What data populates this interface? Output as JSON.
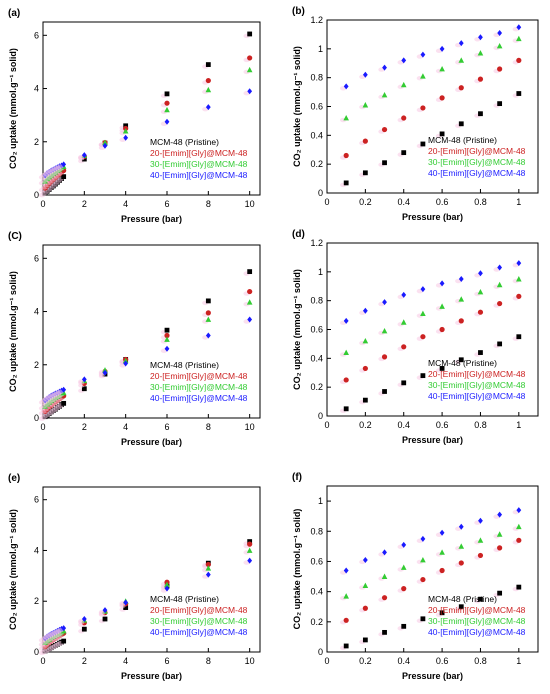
{
  "colors": {
    "pristine": "#000000",
    "il20": "#cc2222",
    "il30": "#33cc33",
    "il40": "#1a1aff",
    "shadow": "#f7c8e4"
  },
  "legend": [
    "MCM-48 (Pristine)",
    "20-[Emim][Gly]@MCM-48",
    "30-[Emim][Gly]@MCM-48",
    "40-[Emim][Gly]@MCM-48"
  ],
  "chart_data": [
    {
      "type": "scatter",
      "label": "(a)",
      "xlabel": "Pressure (bar)",
      "ylabel": "CO₂ uptake (mmol.g⁻¹ solid)",
      "xlim": [
        0,
        10.5
      ],
      "ylim": [
        0,
        6.5
      ],
      "xticks": [
        0,
        2,
        4,
        6,
        8,
        10
      ],
      "yticks": [
        0,
        2,
        4,
        6
      ],
      "legend_position": "lower-right",
      "x": [
        0.1,
        0.2,
        0.3,
        0.4,
        0.5,
        0.6,
        0.7,
        0.8,
        0.9,
        1.0,
        2,
        3,
        4,
        6,
        8,
        10
      ],
      "series": [
        {
          "name": "MCM-48 (Pristine)",
          "values": [
            0.07,
            0.14,
            0.21,
            0.28,
            0.34,
            0.41,
            0.48,
            0.55,
            0.62,
            0.69,
            1.35,
            1.95,
            2.6,
            3.8,
            4.9,
            6.05
          ]
        },
        {
          "name": "20-[Emim][Gly]@MCM-48",
          "values": [
            0.26,
            0.36,
            0.44,
            0.52,
            0.59,
            0.66,
            0.73,
            0.79,
            0.86,
            0.92,
            1.45,
            1.97,
            2.5,
            3.45,
            4.3,
            5.15
          ]
        },
        {
          "name": "30-[Emim][Gly]@MCM-48",
          "values": [
            0.52,
            0.61,
            0.68,
            0.75,
            0.81,
            0.86,
            0.92,
            0.97,
            1.02,
            1.07,
            1.48,
            1.97,
            2.4,
            3.2,
            3.95,
            4.7
          ]
        },
        {
          "name": "40-[Emim][Gly]@MCM-48",
          "values": [
            0.74,
            0.82,
            0.87,
            0.92,
            0.96,
            1.0,
            1.04,
            1.08,
            1.11,
            1.15,
            1.5,
            1.85,
            2.15,
            2.75,
            3.3,
            3.9
          ]
        }
      ]
    },
    {
      "type": "scatter",
      "label": "(b)",
      "xlabel": "Pressure (bar)",
      "ylabel": "CO₂ uptake (mmol.g⁻¹ solid)",
      "xlim": [
        0,
        1.1
      ],
      "ylim": [
        0,
        1.2
      ],
      "xticks": [
        0,
        0.2,
        0.4,
        0.6,
        0.8,
        1
      ],
      "yticks": [
        0,
        0.2,
        0.4,
        0.6,
        0.8,
        1,
        1.2
      ],
      "legend_position": "lower-right",
      "x": [
        0.1,
        0.2,
        0.3,
        0.4,
        0.5,
        0.6,
        0.7,
        0.8,
        0.9,
        1.0
      ],
      "series": [
        {
          "name": "MCM-48 (Pristine)",
          "values": [
            0.07,
            0.14,
            0.21,
            0.28,
            0.34,
            0.41,
            0.48,
            0.55,
            0.62,
            0.69
          ]
        },
        {
          "name": "20-[Emim][Gly]@MCM-48",
          "values": [
            0.26,
            0.36,
            0.44,
            0.52,
            0.59,
            0.66,
            0.73,
            0.79,
            0.86,
            0.92
          ]
        },
        {
          "name": "30-[Emim][Gly]@MCM-48",
          "values": [
            0.52,
            0.61,
            0.68,
            0.75,
            0.81,
            0.86,
            0.92,
            0.97,
            1.02,
            1.07
          ]
        },
        {
          "name": "40-[Emim][Gly]@MCM-48",
          "values": [
            0.74,
            0.82,
            0.87,
            0.92,
            0.96,
            1.0,
            1.04,
            1.08,
            1.11,
            1.15
          ]
        }
      ]
    },
    {
      "type": "scatter",
      "label": "(C)",
      "xlabel": "Pressure (bar)",
      "ylabel": "CO₂ uptake (mmol.g⁻¹ solid)",
      "xlim": [
        0,
        10.5
      ],
      "ylim": [
        0,
        6.5
      ],
      "xticks": [
        0,
        2,
        4,
        6,
        8,
        10
      ],
      "yticks": [
        0,
        2,
        4,
        6
      ],
      "legend_position": "lower-right",
      "x": [
        0.1,
        0.2,
        0.3,
        0.4,
        0.5,
        0.6,
        0.7,
        0.8,
        0.9,
        1.0,
        2,
        3,
        4,
        6,
        8,
        10
      ],
      "series": [
        {
          "name": "MCM-48 (Pristine)",
          "values": [
            0.05,
            0.11,
            0.17,
            0.23,
            0.28,
            0.33,
            0.39,
            0.44,
            0.5,
            0.55,
            1.1,
            1.65,
            2.2,
            3.3,
            4.4,
            5.5
          ]
        },
        {
          "name": "20-[Emim][Gly]@MCM-48",
          "values": [
            0.25,
            0.33,
            0.41,
            0.48,
            0.55,
            0.6,
            0.66,
            0.72,
            0.78,
            0.83,
            1.3,
            1.75,
            2.2,
            3.1,
            3.95,
            4.75
          ]
        },
        {
          "name": "30-[Emim][Gly]@MCM-48",
          "values": [
            0.44,
            0.52,
            0.59,
            0.65,
            0.71,
            0.76,
            0.81,
            0.86,
            0.91,
            0.95,
            1.4,
            1.8,
            2.15,
            2.95,
            3.7,
            4.35
          ]
        },
        {
          "name": "40-[Emim][Gly]@MCM-48",
          "values": [
            0.66,
            0.73,
            0.79,
            0.84,
            0.88,
            0.92,
            0.95,
            0.99,
            1.03,
            1.06,
            1.45,
            1.7,
            2.05,
            2.6,
            3.1,
            3.7
          ]
        }
      ]
    },
    {
      "type": "scatter",
      "label": "(d)",
      "xlabel": "Pressure (bar)",
      "ylabel": "CO₂ uptake (mmol.g⁻¹ solid)",
      "xlim": [
        0,
        1.1
      ],
      "ylim": [
        0,
        1.2
      ],
      "xticks": [
        0,
        0.2,
        0.4,
        0.6,
        0.8,
        1
      ],
      "yticks": [
        0,
        0.2,
        0.4,
        0.6,
        0.8,
        1,
        1.2
      ],
      "legend_position": "lower-right",
      "x": [
        0.1,
        0.2,
        0.3,
        0.4,
        0.5,
        0.6,
        0.7,
        0.8,
        0.9,
        1.0
      ],
      "series": [
        {
          "name": "MCM-48 (Pristine)",
          "values": [
            0.05,
            0.11,
            0.17,
            0.23,
            0.28,
            0.33,
            0.39,
            0.44,
            0.5,
            0.55
          ]
        },
        {
          "name": "20-[Emim][Gly]@MCM-48",
          "values": [
            0.25,
            0.33,
            0.41,
            0.48,
            0.55,
            0.6,
            0.66,
            0.72,
            0.78,
            0.83
          ]
        },
        {
          "name": "30-[Emim][Gly]@MCM-48",
          "values": [
            0.44,
            0.52,
            0.59,
            0.65,
            0.71,
            0.76,
            0.81,
            0.86,
            0.91,
            0.95
          ]
        },
        {
          "name": "40-[Emim][Gly]@MCM-48",
          "values": [
            0.66,
            0.73,
            0.79,
            0.84,
            0.88,
            0.92,
            0.95,
            0.99,
            1.03,
            1.06
          ]
        }
      ]
    },
    {
      "type": "scatter",
      "label": "(e)",
      "xlabel": "Pressure (bar)",
      "ylabel": "CO₂ uptake (mmol.g⁻¹ solid)",
      "xlim": [
        0,
        10.5
      ],
      "ylim": [
        0,
        6.5
      ],
      "xticks": [
        0,
        2,
        4,
        6,
        8,
        10
      ],
      "yticks": [
        0,
        2,
        4,
        6
      ],
      "legend_position": "lower-right",
      "x": [
        0.1,
        0.2,
        0.3,
        0.4,
        0.5,
        0.6,
        0.7,
        0.8,
        0.9,
        1.0,
        2,
        3,
        4,
        6,
        8,
        10
      ],
      "series": [
        {
          "name": "MCM-48 (Pristine)",
          "values": [
            0.04,
            0.08,
            0.13,
            0.17,
            0.22,
            0.26,
            0.3,
            0.35,
            0.39,
            0.43,
            0.9,
            1.3,
            1.75,
            2.6,
            3.5,
            4.35
          ]
        },
        {
          "name": "20-[Emim][Gly]@MCM-48",
          "values": [
            0.21,
            0.29,
            0.36,
            0.42,
            0.48,
            0.54,
            0.59,
            0.64,
            0.69,
            0.74,
            1.15,
            1.55,
            1.9,
            2.75,
            3.45,
            4.25
          ]
        },
        {
          "name": "30-[Emim][Gly]@MCM-48",
          "values": [
            0.37,
            0.44,
            0.5,
            0.56,
            0.61,
            0.66,
            0.7,
            0.74,
            0.78,
            0.83,
            1.25,
            1.6,
            2.0,
            2.65,
            3.3,
            4.0
          ]
        },
        {
          "name": "40-[Emim][Gly]@MCM-48",
          "values": [
            0.54,
            0.61,
            0.66,
            0.71,
            0.75,
            0.79,
            0.83,
            0.87,
            0.91,
            0.94,
            1.3,
            1.65,
            1.95,
            2.5,
            3.05,
            3.6
          ]
        }
      ]
    },
    {
      "type": "scatter",
      "label": "(f)",
      "xlabel": "Pressure (bar)",
      "ylabel": "CO₂ uptake (mmol.g⁻¹ solid)",
      "xlim": [
        0,
        1.1
      ],
      "ylim": [
        0,
        1.1
      ],
      "xticks": [
        0,
        0.2,
        0.4,
        0.6,
        0.8,
        1
      ],
      "yticks": [
        0,
        0.2,
        0.4,
        0.6,
        0.8,
        1
      ],
      "legend_position": "lower-right",
      "x": [
        0.1,
        0.2,
        0.3,
        0.4,
        0.5,
        0.6,
        0.7,
        0.8,
        0.9,
        1.0
      ],
      "series": [
        {
          "name": "MCM-48 (Pristine)",
          "values": [
            0.04,
            0.08,
            0.13,
            0.17,
            0.22,
            0.26,
            0.3,
            0.35,
            0.39,
            0.43
          ]
        },
        {
          "name": "20-[Emim][Gly]@MCM-48",
          "values": [
            0.21,
            0.29,
            0.36,
            0.42,
            0.48,
            0.54,
            0.59,
            0.64,
            0.69,
            0.74
          ]
        },
        {
          "name": "30-[Emim][Gly]@MCM-48",
          "values": [
            0.37,
            0.44,
            0.5,
            0.56,
            0.61,
            0.66,
            0.7,
            0.74,
            0.78,
            0.83
          ]
        },
        {
          "name": "40-[Emim][Gly]@MCM-48",
          "values": [
            0.54,
            0.61,
            0.66,
            0.71,
            0.75,
            0.79,
            0.83,
            0.87,
            0.91,
            0.94
          ]
        }
      ]
    }
  ]
}
